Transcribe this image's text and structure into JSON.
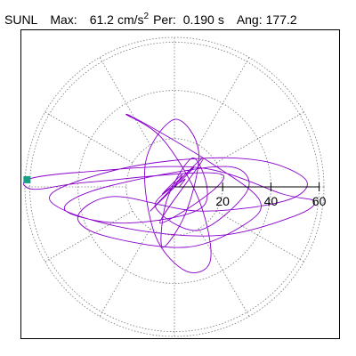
{
  "chart_data": {
    "type": "polar-orbit",
    "station": "SUNL",
    "max_label": "Max:",
    "max_value": 61.2,
    "max_unit": "cm/s",
    "max_unit_exp": "2",
    "per_label": "Per:",
    "per_value": {
      "value": 0.19,
      "label": "0.190"
    },
    "per_unit": "s",
    "ang_label": "Ang:",
    "ang_value": 177.2,
    "rlim": [
      0,
      62
    ],
    "rticks": [
      20,
      40,
      60
    ],
    "spoke_step": 30,
    "color": "#8800cc",
    "marker_color": "#16a085",
    "x": [
      0,
      3,
      -5,
      8,
      -10,
      12,
      -6,
      20,
      -35,
      -58,
      -61.1,
      -40,
      10,
      45,
      58,
      50,
      20,
      -15,
      -45,
      -50,
      -20,
      15,
      40,
      55,
      45,
      10,
      -25,
      -40,
      -30,
      5,
      30,
      35,
      15,
      -10,
      -20,
      -5,
      10,
      15,
      5,
      -8,
      -12,
      0,
      10,
      5,
      -5,
      -3,
      8,
      12,
      -20,
      -45,
      -35,
      0,
      25,
      30,
      10,
      -8,
      4,
      2
    ],
    "y": [
      0,
      5,
      -3,
      8,
      -10,
      12,
      -15,
      5,
      2,
      -1,
      3,
      6,
      8,
      -3,
      -6,
      -12,
      -20,
      -18,
      -10,
      -2,
      8,
      12,
      10,
      2,
      -6,
      -10,
      -4,
      -12,
      -20,
      -25,
      -15,
      -5,
      10,
      25,
      30,
      20,
      -5,
      -30,
      -35,
      -20,
      10,
      28,
      15,
      -10,
      -25,
      -5,
      12,
      -8,
      -15,
      -10,
      -2,
      6,
      8,
      -2,
      -18,
      -8,
      3,
      0
    ]
  }
}
